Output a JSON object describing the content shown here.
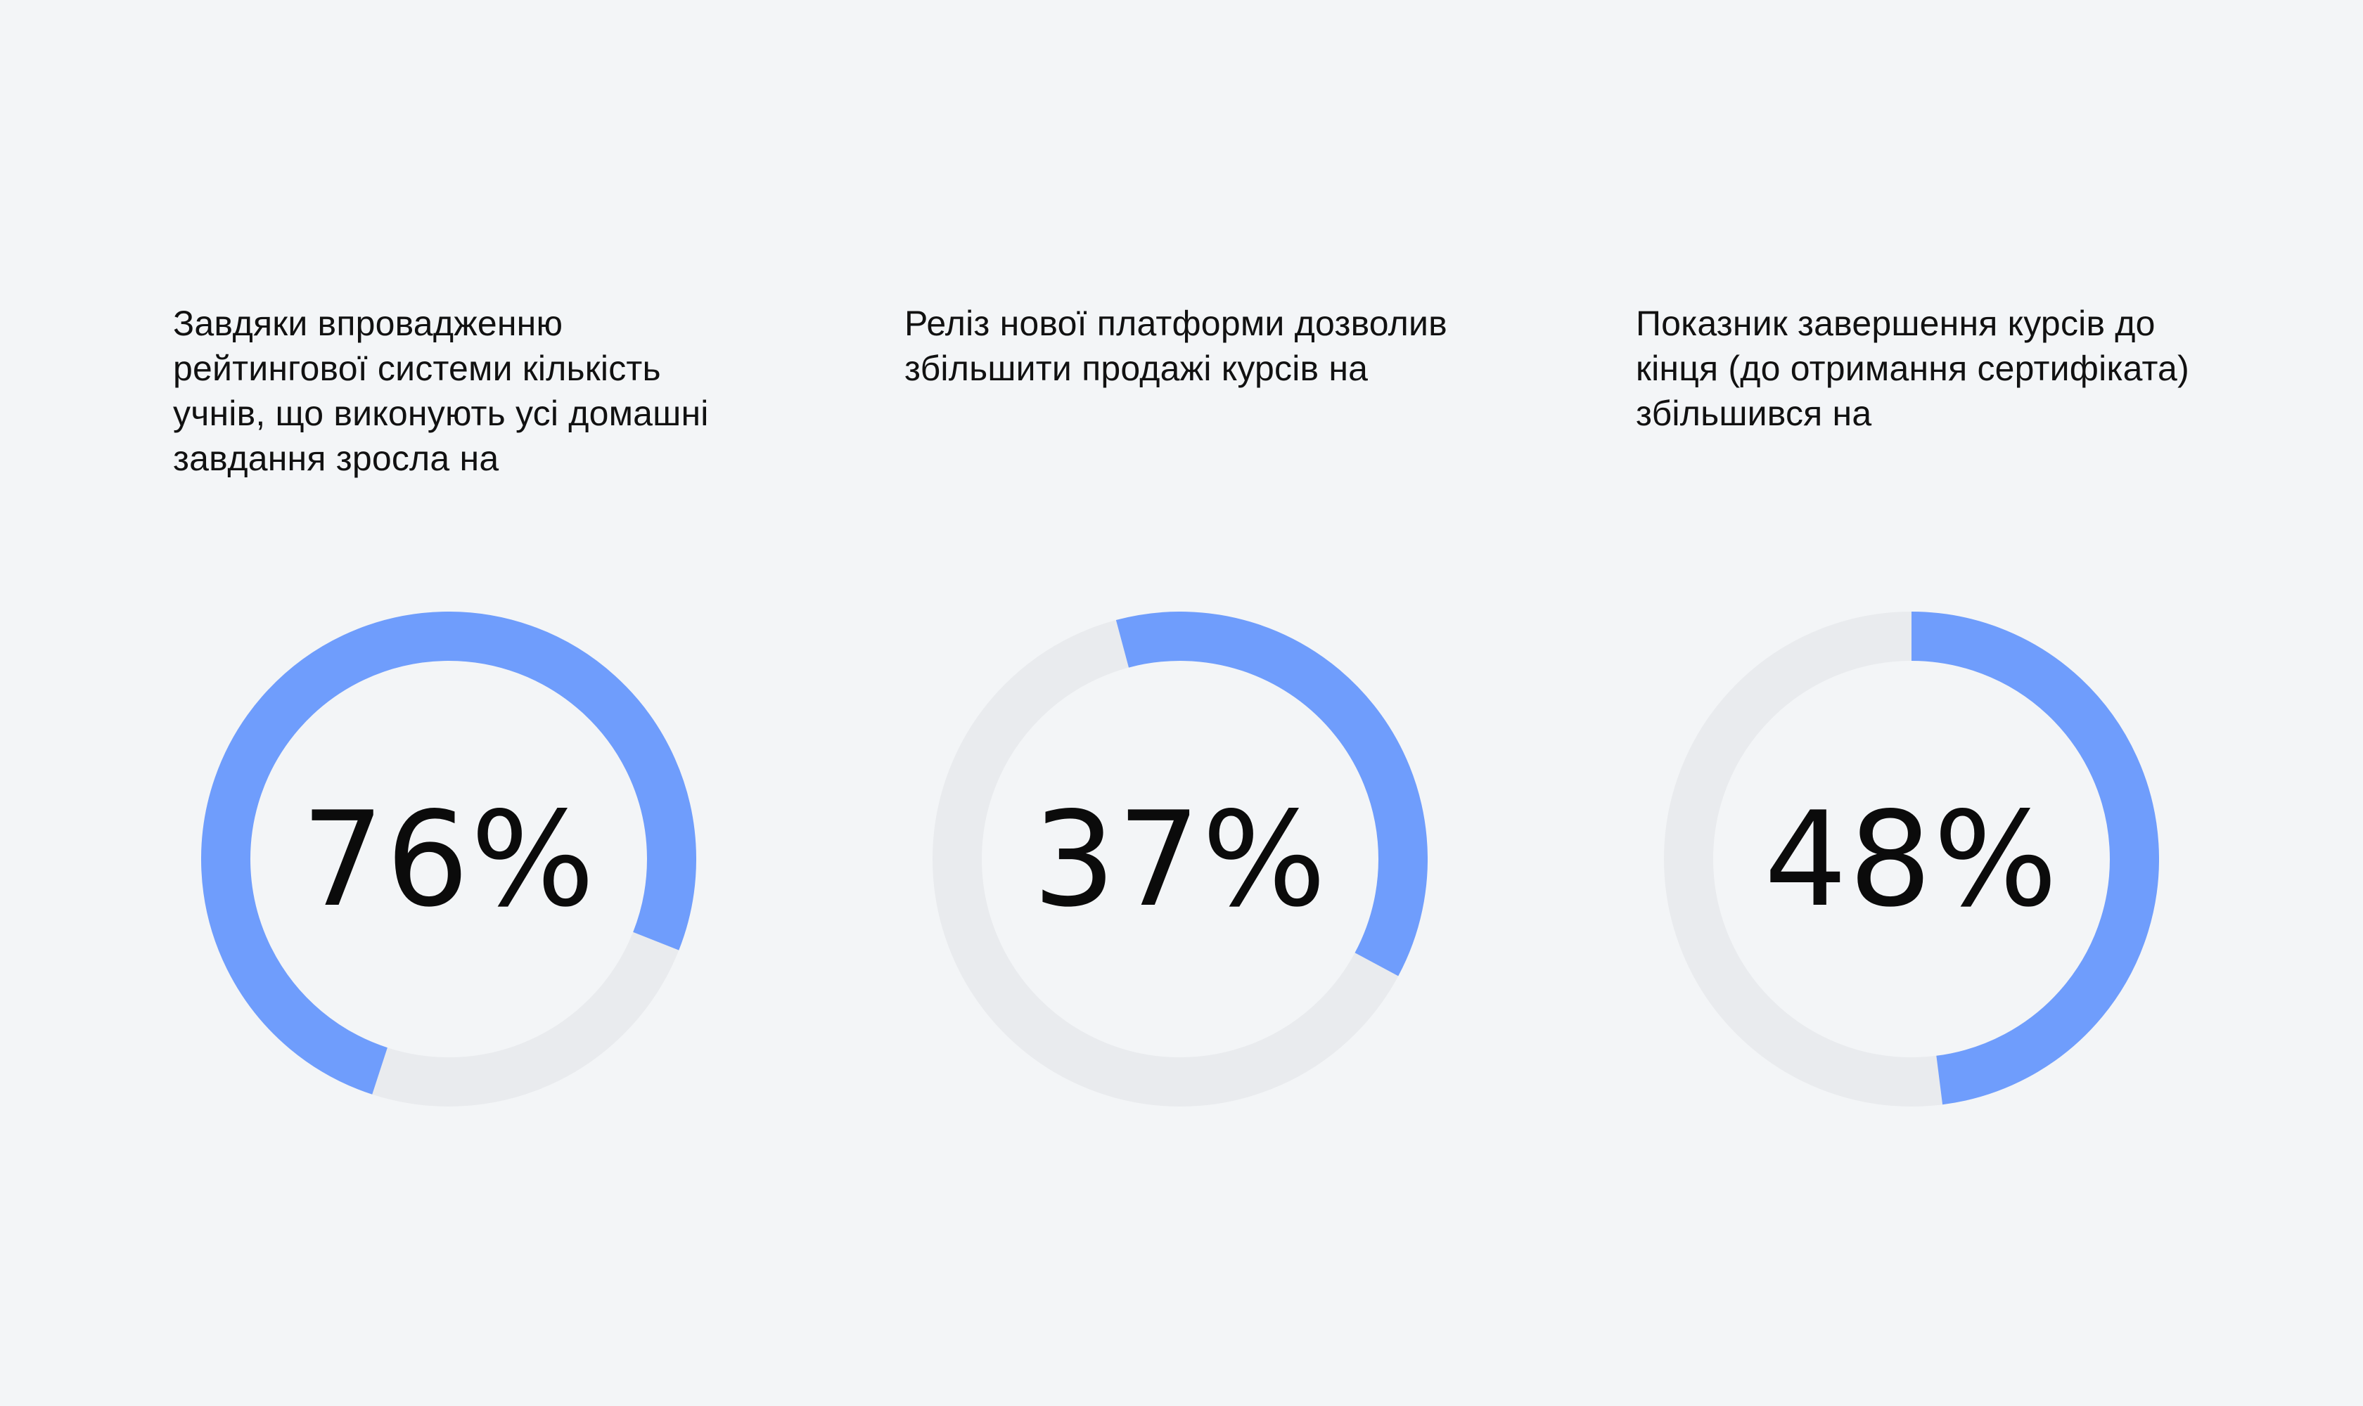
{
  "colors": {
    "background": "#f3f5f7",
    "track": "#e9ebee",
    "accent": "#6f9dfc",
    "text": "#111111"
  },
  "chart_data": [
    {
      "type": "pie",
      "variant": "donut",
      "caption": "Завдяки впровадженню рейтингової системи кількість учнів, що виконують усі домашні завдання зросла на",
      "value": 76,
      "label": "76%",
      "arc_start_degrees_clockwise_from_top": 198
    },
    {
      "type": "pie",
      "variant": "donut",
      "caption": "Реліз нової платформи дозволив збільшити продажі курсів на",
      "value": 37,
      "label": "37%",
      "arc_start_degrees_clockwise_from_top": 345
    },
    {
      "type": "pie",
      "variant": "donut",
      "caption": "Показник завершення курсів до кінця (до отримання сертифіката) збільшився на",
      "value": 48,
      "label": "48%",
      "arc_start_degrees_clockwise_from_top": 0
    }
  ]
}
